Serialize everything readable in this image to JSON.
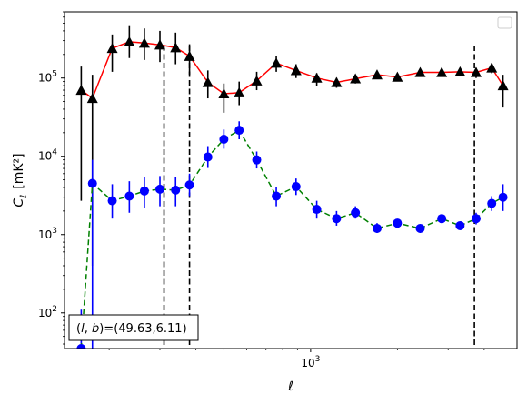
{
  "chart_data": {
    "type": "scatter",
    "xlabel": "ℓ",
    "ylabel": "C",
    "ylabel_sub": "ℓ",
    "ylabel_unit": "[mK²]",
    "xscale": "log",
    "yscale": "log",
    "xlim": [
      140,
      5200
    ],
    "ylim": [
      35,
      700000
    ],
    "x_tick_labels": [
      {
        "value": 1000,
        "base": "10",
        "exp": "3"
      }
    ],
    "y_tick_labels": [
      {
        "value": 100,
        "base": "10",
        "exp": "2"
      },
      {
        "value": 1000,
        "base": "10",
        "exp": "3"
      },
      {
        "value": 10000,
        "base": "10",
        "exp": "4"
      },
      {
        "value": 100000,
        "base": "10",
        "exp": "5"
      }
    ],
    "annotation": {
      "prefix": "(",
      "l": "l",
      "mid": ", ",
      "b": "b",
      "suffix": ")=(49.63,6.11)"
    },
    "legend": {
      "placement": "top-right",
      "entries": []
    },
    "vlines": [
      {
        "x": 310,
        "ymin": 35,
        "ymax": 260000
      },
      {
        "x": 380,
        "ymin": 35,
        "ymax": 260000
      },
      {
        "x": 3700,
        "ymin": 35,
        "ymax": 260000
      }
    ],
    "series": [
      {
        "marker": "triangle",
        "color": "#000000",
        "line_color": "#ff0000",
        "line_style": "solid",
        "points": [
          {
            "x": 160,
            "y": 70000,
            "lo": 2700,
            "hi": 140000
          },
          {
            "x": 175,
            "y": 55000,
            "lo": 400,
            "hi": 110000
          },
          {
            "x": 205,
            "y": 240000,
            "lo": 120000,
            "hi": 360000
          },
          {
            "x": 235,
            "y": 290000,
            "lo": 180000,
            "hi": 460000
          },
          {
            "x": 265,
            "y": 280000,
            "lo": 170000,
            "hi": 430000
          },
          {
            "x": 300,
            "y": 265000,
            "lo": 160000,
            "hi": 400000
          },
          {
            "x": 340,
            "y": 245000,
            "lo": 150000,
            "hi": 380000
          },
          {
            "x": 380,
            "y": 190000,
            "lo": 110000,
            "hi": 270000
          },
          {
            "x": 440,
            "y": 88000,
            "lo": 55000,
            "hi": 125000
          },
          {
            "x": 500,
            "y": 63000,
            "lo": 36000,
            "hi": 85000
          },
          {
            "x": 565,
            "y": 65000,
            "lo": 45000,
            "hi": 90000
          },
          {
            "x": 650,
            "y": 92000,
            "lo": 70000,
            "hi": 120000
          },
          {
            "x": 760,
            "y": 155000,
            "lo": 120000,
            "hi": 190000
          },
          {
            "x": 890,
            "y": 125000,
            "lo": 100000,
            "hi": 150000
          },
          {
            "x": 1050,
            "y": 100000,
            "lo": 80000,
            "hi": 115000
          },
          {
            "x": 1230,
            "y": 88000,
            "lo": 75000,
            "hi": 100000
          },
          {
            "x": 1430,
            "y": 98000,
            "lo": 85000,
            "hi": 110000
          },
          {
            "x": 1700,
            "y": 110000,
            "lo": 100000,
            "hi": 120000
          },
          {
            "x": 2000,
            "y": 103000,
            "lo": 95000,
            "hi": 112000
          },
          {
            "x": 2400,
            "y": 118000,
            "lo": 110000,
            "hi": 126000
          },
          {
            "x": 2850,
            "y": 118000,
            "lo": 110000,
            "hi": 126000
          },
          {
            "x": 3300,
            "y": 120000,
            "lo": 112000,
            "hi": 128000
          },
          {
            "x": 3750,
            "y": 118000,
            "lo": 100000,
            "hi": 135000
          },
          {
            "x": 4250,
            "y": 135000,
            "lo": 115000,
            "hi": 155000
          },
          {
            "x": 4650,
            "y": 80000,
            "lo": 42000,
            "hi": 110000
          }
        ]
      },
      {
        "marker": "circle",
        "color": "#0000ff",
        "line_color": "#008000",
        "line_style": "dashed",
        "points": [
          {
            "x": 160,
            "y": 35,
            "lo": 35,
            "hi": 110
          },
          {
            "x": 175,
            "y": 4500,
            "lo": 35,
            "hi": 9000
          },
          {
            "x": 205,
            "y": 2700,
            "lo": 1600,
            "hi": 4400
          },
          {
            "x": 235,
            "y": 3100,
            "lo": 1900,
            "hi": 4800
          },
          {
            "x": 265,
            "y": 3600,
            "lo": 2200,
            "hi": 5500
          },
          {
            "x": 300,
            "y": 3800,
            "lo": 2300,
            "hi": 5600
          },
          {
            "x": 340,
            "y": 3700,
            "lo": 2300,
            "hi": 5500
          },
          {
            "x": 380,
            "y": 4300,
            "lo": 3100,
            "hi": 6000
          },
          {
            "x": 440,
            "y": 9800,
            "lo": 7100,
            "hi": 13500
          },
          {
            "x": 500,
            "y": 16500,
            "lo": 12500,
            "hi": 22000
          },
          {
            "x": 565,
            "y": 21500,
            "lo": 16500,
            "hi": 28000
          },
          {
            "x": 650,
            "y": 9000,
            "lo": 7000,
            "hi": 11500
          },
          {
            "x": 760,
            "y": 3100,
            "lo": 2300,
            "hi": 4100
          },
          {
            "x": 890,
            "y": 4100,
            "lo": 3200,
            "hi": 5200
          },
          {
            "x": 1050,
            "y": 2100,
            "lo": 1600,
            "hi": 2700
          },
          {
            "x": 1230,
            "y": 1600,
            "lo": 1300,
            "hi": 2000
          },
          {
            "x": 1430,
            "y": 1900,
            "lo": 1600,
            "hi": 2300
          },
          {
            "x": 1700,
            "y": 1200,
            "lo": 1050,
            "hi": 1400
          },
          {
            "x": 2000,
            "y": 1400,
            "lo": 1250,
            "hi": 1550
          },
          {
            "x": 2400,
            "y": 1200,
            "lo": 1050,
            "hi": 1350
          },
          {
            "x": 2850,
            "y": 1600,
            "lo": 1450,
            "hi": 1800
          },
          {
            "x": 3300,
            "y": 1300,
            "lo": 1150,
            "hi": 1450
          },
          {
            "x": 3750,
            "y": 1600,
            "lo": 1350,
            "hi": 1900
          },
          {
            "x": 4250,
            "y": 2500,
            "lo": 2000,
            "hi": 3100
          },
          {
            "x": 4650,
            "y": 3000,
            "lo": 2000,
            "hi": 4400
          }
        ]
      }
    ]
  }
}
